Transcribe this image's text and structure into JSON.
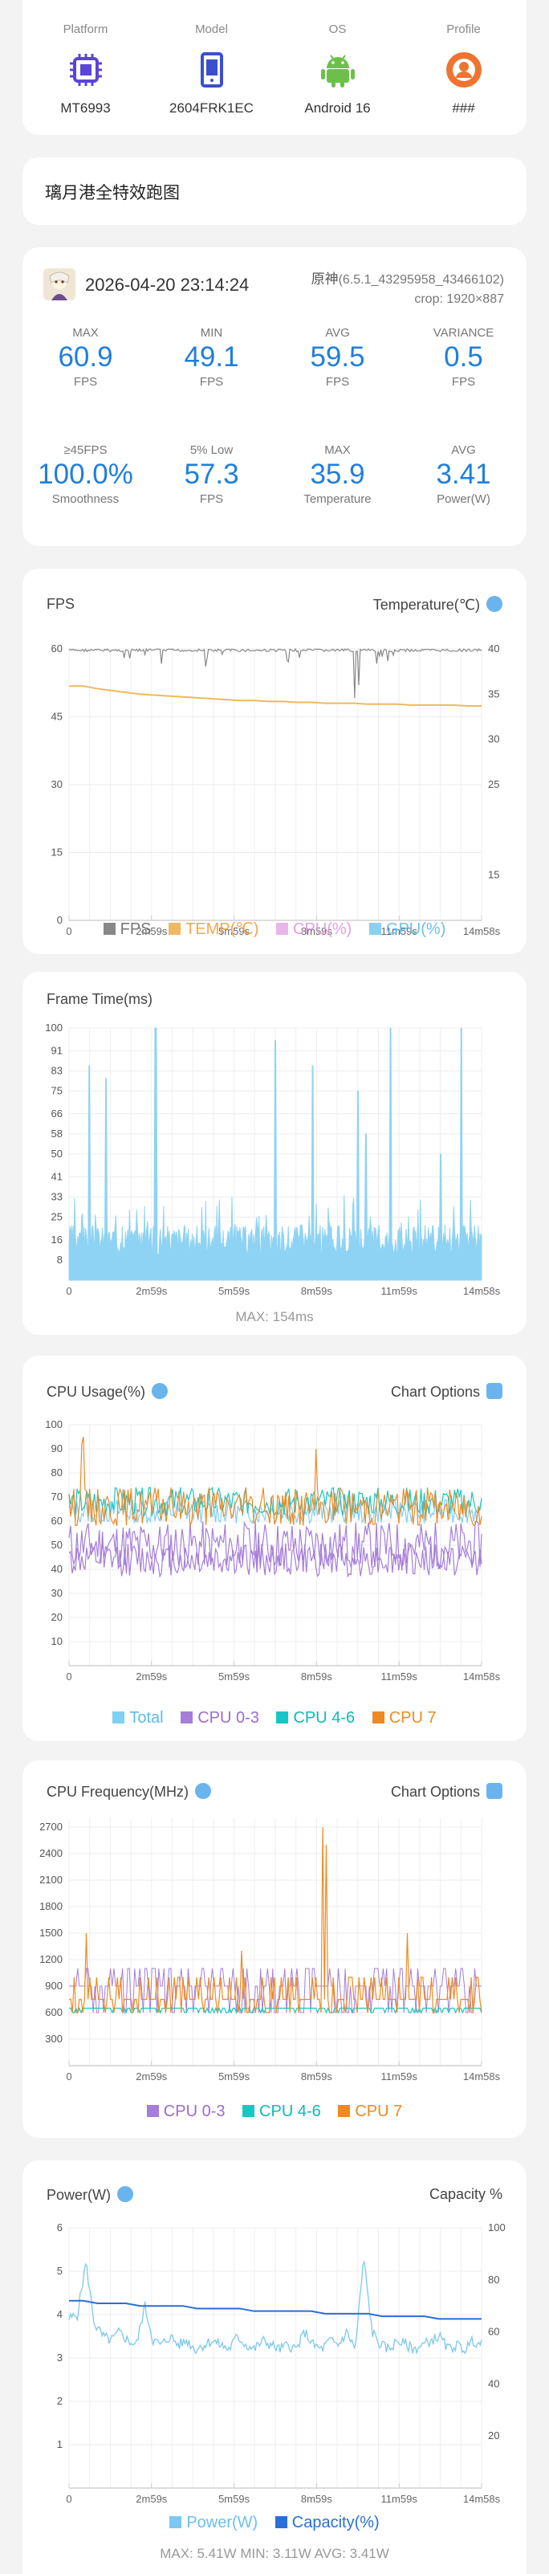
{
  "device": [
    {
      "label": "Platform",
      "value": "MT6993",
      "icon": "chip-icon"
    },
    {
      "label": "Model",
      "value": "2604FRK1EC",
      "icon": "phone-icon"
    },
    {
      "label": "OS",
      "value": "Android 16",
      "icon": "android-icon"
    },
    {
      "label": "Profile",
      "value": "###",
      "icon": "profile-icon"
    }
  ],
  "session_title": "璃月港全特效跑图",
  "stats_header": {
    "datetime": "2026-04-20 23:14:24",
    "game": "原神",
    "version": "(6.5.1_43295958_43466102)",
    "crop": "crop: 1920×887"
  },
  "stats": [
    {
      "label": "MAX",
      "value": "60.9",
      "unit": "FPS"
    },
    {
      "label": "MIN",
      "value": "49.1",
      "unit": "FPS"
    },
    {
      "label": "AVG",
      "value": "59.5",
      "unit": "FPS"
    },
    {
      "label": "VARIANCE",
      "value": "0.5",
      "unit": "FPS"
    },
    {
      "label": "≥45FPS",
      "value": "100.0%",
      "unit": "Smoothness"
    },
    {
      "label": "5% Low",
      "value": "57.3",
      "unit": "FPS"
    },
    {
      "label": "MAX",
      "value": "35.9",
      "unit": "Temperature"
    },
    {
      "label": "AVG",
      "value": "3.41",
      "unit": "Power(W)"
    }
  ],
  "fps_chart": {
    "title": "FPS",
    "right_label": "Temperature(℃)",
    "legend": [
      "FPS",
      "TEMP(℃)",
      "CPU(%)",
      "GPU(%)"
    ]
  },
  "frametime_chart": {
    "title": "Frame Time(ms)",
    "max_label": "MAX: 154ms"
  },
  "cpu_usage_chart": {
    "title": "CPU Usage(%)",
    "right_label": "Chart Options",
    "legend": [
      "Total",
      "CPU 0-3",
      "CPU 4-6",
      "CPU 7"
    ]
  },
  "cpu_freq_chart": {
    "title": "CPU Frequency(MHz)",
    "right_label": "Chart Options",
    "legend": [
      "CPU 0-3",
      "CPU 4-6",
      "CPU 7"
    ]
  },
  "power_chart": {
    "title": "Power(W)",
    "right_label": "Capacity %",
    "legend": [
      "Power(W)",
      "Capacity(%)"
    ],
    "footer": "MAX: 5.41W   MIN: 3.11W   AVG: 3.41W"
  },
  "colors": {
    "accent": "#1f7fdc",
    "fps": "#888888",
    "temp": "#f0b860",
    "cpu": "#e8b6e8",
    "gpu": "#8ad0f0",
    "frametime": "#8fd3f4",
    "total": "#7fd0f5",
    "c03": "#a57ed8",
    "c46": "#19c6c6",
    "c7": "#ee8a24",
    "capacity": "#2a6fd8",
    "power": "#7cc8ee"
  },
  "chart_data": [
    {
      "type": "line",
      "title": "FPS",
      "x_ticks": [
        "0",
        "2m59s",
        "5m59s",
        "8m59s",
        "11m59s",
        "14m58s"
      ],
      "y_ticks_left": [
        0,
        15,
        30,
        45,
        60
      ],
      "y_ticks_right": [
        15,
        25,
        30,
        35,
        40
      ],
      "ylim": [
        0,
        60
      ],
      "series": [
        {
          "name": "FPS",
          "axis": "left",
          "values": [
            60,
            59.9,
            60,
            59.8,
            60,
            60,
            59.9,
            60,
            59.5,
            60,
            60,
            59.9,
            60,
            59.8,
            59.9,
            60,
            60,
            59.7,
            60,
            60,
            59.9,
            60,
            60,
            60,
            59.6,
            60,
            59.9,
            60,
            60,
            59.8,
            60,
            60,
            60,
            59.9,
            60,
            60,
            60,
            59.9,
            60,
            59.8,
            60,
            60,
            60,
            59.9,
            60,
            60,
            59.8,
            60,
            60,
            60
          ],
          "min": 49.1
        },
        {
          "name": "TEMP(℃)",
          "axis": "right",
          "values": [
            35.9,
            35.9,
            35.6,
            35.4,
            35.2,
            35.0,
            34.9,
            34.8,
            34.7,
            34.6,
            34.5,
            34.4,
            34.3,
            34.3,
            34.2,
            34.2,
            34.1,
            34.1,
            34.0,
            34.0,
            34.0,
            33.9,
            33.9,
            33.9,
            33.8,
            33.8,
            33.8,
            33.8,
            33.7,
            33.7
          ]
        }
      ]
    },
    {
      "type": "area",
      "title": "Frame Time(ms)",
      "x_ticks": [
        "0",
        "2m59s",
        "5m59s",
        "8m59s",
        "11m59s",
        "14m58s"
      ],
      "y_ticks": [
        8,
        16,
        25,
        33,
        41,
        50,
        58,
        66,
        75,
        83,
        91,
        100
      ],
      "ylim": [
        0,
        100
      ],
      "baseline_mean": 16.7,
      "spikes": [
        {
          "x": 0.05,
          "v": 85
        },
        {
          "x": 0.09,
          "v": 80
        },
        {
          "x": 0.21,
          "v": 100
        },
        {
          "x": 0.5,
          "v": 95
        },
        {
          "x": 0.59,
          "v": 85
        },
        {
          "x": 0.7,
          "v": 75
        },
        {
          "x": 0.72,
          "v": 58
        },
        {
          "x": 0.78,
          "v": 100
        },
        {
          "x": 0.9,
          "v": 50
        },
        {
          "x": 0.95,
          "v": 100
        }
      ]
    },
    {
      "type": "line",
      "title": "CPU Usage(%)",
      "x_ticks": [
        "0",
        "2m59s",
        "5m59s",
        "8m59s",
        "11m59s",
        "14m58s"
      ],
      "y_ticks": [
        10,
        20,
        30,
        40,
        50,
        60,
        70,
        80,
        90,
        100
      ],
      "ylim": [
        0,
        100
      ],
      "series": [
        {
          "name": "Total",
          "mean": 62
        },
        {
          "name": "CPU 0-3",
          "mean": 50
        },
        {
          "name": "CPU 4-6",
          "mean": 68
        },
        {
          "name": "CPU 7",
          "mean": 66
        }
      ]
    },
    {
      "type": "line",
      "title": "CPU Frequency(MHz)",
      "x_ticks": [
        "0",
        "2m59s",
        "5m59s",
        "8m59s",
        "11m59s",
        "14m58s"
      ],
      "y_ticks": [
        300,
        600,
        900,
        1200,
        1500,
        1800,
        2100,
        2400,
        2700
      ],
      "ylim": [
        0,
        2800
      ],
      "series": [
        {
          "name": "CPU 0-3",
          "mean": 900
        },
        {
          "name": "CPU 4-6",
          "mean": 650
        },
        {
          "name": "CPU 7",
          "mean": 800
        }
      ]
    },
    {
      "type": "line",
      "title": "Power(W)",
      "x_ticks": [
        "0",
        "2m59s",
        "5m59s",
        "8m59s",
        "11m59s",
        "14m58s"
      ],
      "y_ticks_left": [
        1,
        2,
        3,
        4,
        5,
        6
      ],
      "y_ticks_right": [
        20,
        40,
        60,
        80,
        100
      ],
      "ylim_left": [
        0,
        6
      ],
      "ylim_right": [
        0,
        100
      ],
      "series": [
        {
          "name": "Power(W)",
          "axis": "left",
          "values": [
            3.9,
            4.0,
            5.2,
            3.8,
            3.5,
            3.4,
            3.6,
            3.4,
            3.3,
            4.2,
            3.4,
            3.3,
            3.5,
            3.3,
            3.4,
            3.2,
            3.3,
            3.4,
            3.3,
            3.2,
            3.5,
            3.3,
            3.2,
            3.4,
            3.3,
            3.2,
            3.3,
            3.2,
            3.6,
            3.3,
            3.2,
            3.4,
            3.3,
            3.6,
            3.2,
            5.3,
            3.6,
            3.3,
            3.2,
            3.4,
            3.3,
            3.2,
            3.3,
            3.4,
            3.5,
            3.2,
            3.3,
            3.2,
            3.4,
            3.3
          ]
        },
        {
          "name": "Capacity(%)",
          "axis": "right",
          "values": [
            72,
            72,
            71,
            71,
            71,
            70,
            70,
            70,
            70,
            69,
            69,
            69,
            69,
            68,
            68,
            68,
            68,
            68,
            67,
            67,
            67,
            67,
            66,
            66,
            66,
            66,
            65,
            65,
            65,
            65
          ]
        }
      ]
    }
  ]
}
